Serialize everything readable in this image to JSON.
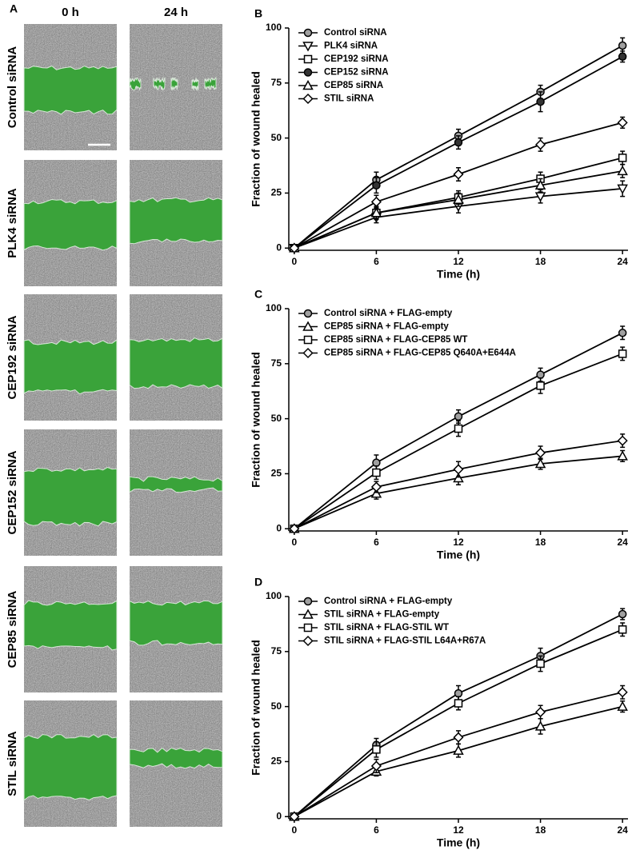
{
  "panel_a": {
    "label": "A",
    "columns": [
      "0 h",
      "24 h"
    ],
    "rows": [
      "Control siRNA",
      "PLK4 siRNA",
      "CEP192 siRNA",
      "CEP152 siRNA",
      "CEP85 siRNA",
      "STIL siRNA"
    ]
  },
  "chart_data": [
    {
      "type": "line",
      "label": "B",
      "xlabel": "Time (h)",
      "ylabel": "Fraction of wound healed",
      "x": [
        0,
        6,
        12,
        18,
        24
      ],
      "xlim": [
        -0.4,
        24.4
      ],
      "ylim": [
        -1,
        100
      ],
      "xticks": [
        0,
        6,
        12,
        18,
        24
      ],
      "yticks": [
        0,
        25,
        50,
        75,
        100
      ],
      "legend": "upper left",
      "series": [
        {
          "name": "Control siRNA",
          "color": "#000000",
          "marker": "circle",
          "marker_fill": "#a0a0a0",
          "values": [
            0,
            31,
            51,
            71,
            92
          ],
          "errors": [
            0.5,
            3.5,
            3,
            3,
            3.5
          ]
        },
        {
          "name": "PLK4 siRNA",
          "color": "#000000",
          "marker": "triangle-down",
          "marker_fill": "#ffffff",
          "values": [
            0,
            14,
            19,
            23.5,
            27
          ],
          "errors": [
            0.5,
            2.5,
            3,
            3,
            3.5
          ]
        },
        {
          "name": "CEP192 siRNA",
          "color": "#000000",
          "marker": "square",
          "marker_fill": "#ffffff",
          "values": [
            0,
            16,
            23,
            31.5,
            41
          ],
          "errors": [
            0.5,
            2.5,
            3,
            3,
            3
          ]
        },
        {
          "name": "CEP152 siRNA",
          "color": "#000000",
          "marker": "circle",
          "marker_fill": "#333333",
          "values": [
            0,
            28.5,
            48,
            66.5,
            87
          ],
          "errors": [
            0.5,
            3.5,
            3,
            4.5,
            2.5
          ]
        },
        {
          "name": "CEP85 siRNA",
          "color": "#000000",
          "marker": "triangle-up",
          "marker_fill": "#ffffff",
          "values": [
            0,
            16,
            22,
            28.5,
            35
          ],
          "errors": [
            0.5,
            3,
            3,
            3,
            3
          ]
        },
        {
          "name": "STIL siRNA",
          "color": "#000000",
          "marker": "diamond",
          "marker_fill": "#ffffff",
          "values": [
            0,
            21,
            33.5,
            47,
            57
          ],
          "errors": [
            0.5,
            3,
            3,
            3,
            2.5
          ]
        }
      ]
    },
    {
      "type": "line",
      "label": "C",
      "xlabel": "Time (h)",
      "ylabel": "Fraction of wound healed",
      "x": [
        0,
        6,
        12,
        18,
        24
      ],
      "xlim": [
        -0.4,
        24.4
      ],
      "ylim": [
        -1,
        100
      ],
      "xticks": [
        0,
        6,
        12,
        18,
        24
      ],
      "yticks": [
        0,
        25,
        50,
        75,
        100
      ],
      "legend": "upper left",
      "series": [
        {
          "name": "Control siRNA + FLAG-empty",
          "color": "#000000",
          "marker": "circle",
          "marker_fill": "#a0a0a0",
          "values": [
            0,
            30,
            51,
            70,
            89
          ],
          "errors": [
            0.5,
            3.5,
            3,
            3,
            3
          ]
        },
        {
          "name": "CEP85 siRNA + FLAG-empty",
          "color": "#000000",
          "marker": "triangle-up",
          "marker_fill": "#ffffff",
          "values": [
            0,
            16,
            23,
            29.5,
            33
          ],
          "errors": [
            0.5,
            2.5,
            3,
            2.5,
            2.5
          ]
        },
        {
          "name": "CEP85 siRNA + FLAG-CEP85 WT",
          "color": "#000000",
          "marker": "square",
          "marker_fill": "#ffffff",
          "values": [
            0,
            25.5,
            45.5,
            65,
            79.5
          ],
          "errors": [
            0.5,
            3,
            3.5,
            3.5,
            3
          ]
        },
        {
          "name": "CEP85 siRNA + FLAG-CEP85 Q640A+E644A",
          "color": "#000000",
          "marker": "diamond",
          "marker_fill": "#ffffff",
          "values": [
            0,
            19,
            27,
            34.5,
            40
          ],
          "errors": [
            0.5,
            2.5,
            3.5,
            3,
            3
          ]
        }
      ]
    },
    {
      "type": "line",
      "label": "D",
      "xlabel": "Time (h)",
      "ylabel": "Fraction of wound healed",
      "x": [
        0,
        6,
        12,
        18,
        24
      ],
      "xlim": [
        -0.4,
        24.4
      ],
      "ylim": [
        -1,
        100
      ],
      "xticks": [
        0,
        6,
        12,
        18,
        24
      ],
      "yticks": [
        0,
        25,
        50,
        75,
        100
      ],
      "legend": "upper left",
      "series": [
        {
          "name": "Control siRNA + FLAG-empty",
          "color": "#000000",
          "marker": "circle",
          "marker_fill": "#a0a0a0",
          "values": [
            0,
            32.5,
            56,
            73,
            92
          ],
          "errors": [
            0.5,
            3,
            3.5,
            3.5,
            2.5
          ]
        },
        {
          "name": "STIL siRNA + FLAG-empty",
          "color": "#000000",
          "marker": "triangle-up",
          "marker_fill": "#ffffff",
          "values": [
            0,
            20.5,
            30,
            41,
            50
          ],
          "errors": [
            0.5,
            2,
            3,
            3.5,
            2.5
          ]
        },
        {
          "name": "STIL siRNA + FLAG-STIL WT",
          "color": "#000000",
          "marker": "square",
          "marker_fill": "#ffffff",
          "values": [
            0,
            30.5,
            51.5,
            69.5,
            85
          ],
          "errors": [
            0.5,
            3.5,
            3,
            3.5,
            3
          ]
        },
        {
          "name": "STIL siRNA + FLAG-STIL L64A+R67A",
          "color": "#000000",
          "marker": "diamond",
          "marker_fill": "#ffffff",
          "values": [
            0,
            23,
            36,
            47.5,
            56.5
          ],
          "errors": [
            0.5,
            3,
            3,
            3,
            3
          ]
        }
      ]
    }
  ]
}
